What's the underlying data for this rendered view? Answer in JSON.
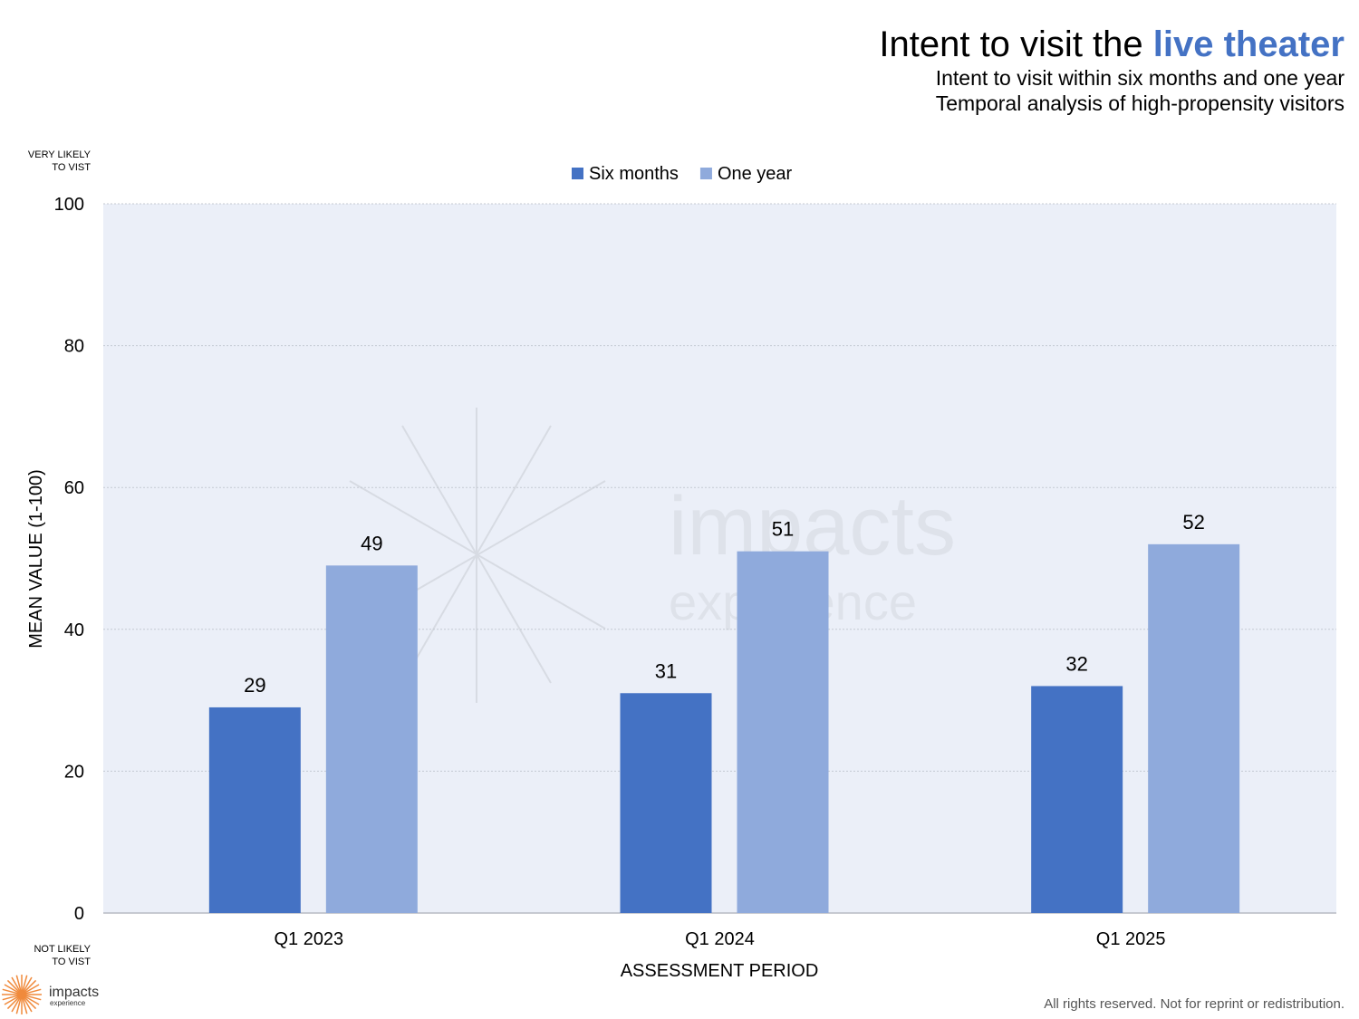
{
  "header": {
    "title_prefix": "Intent to visit the",
    "title_accent": "live theater",
    "subtitle_1": "Intent to visit within six months and one year",
    "subtitle_2": "Temporal analysis of high-propensity visitors"
  },
  "scale_labels": {
    "top": "VERY LIKELY\nTO VIST",
    "bottom": "NOT LIKELY\nTO VIST"
  },
  "watermark": {
    "line1": "impacts",
    "line2": "experience"
  },
  "logo": {
    "line1": "impacts",
    "line2": "experience",
    "color": "#f08a3c"
  },
  "footer": {
    "text": "All rights reserved. Not for reprint or redistribution."
  },
  "colors": {
    "accent": "#4472c4",
    "plot_bg": "#ebeff8"
  },
  "chart_data": {
    "type": "bar",
    "categories": [
      "Q1 2023",
      "Q1 2024",
      "Q1 2025"
    ],
    "series": [
      {
        "name": "Six months",
        "values": [
          29,
          31,
          32
        ],
        "color": "#4472c4"
      },
      {
        "name": "One year",
        "values": [
          49,
          51,
          52
        ],
        "color": "#8faadc"
      }
    ],
    "xlabel": "ASSESSMENT PERIOD",
    "ylabel": "MEAN VALUE (1-100)",
    "ylim": [
      0,
      100
    ],
    "yticks": [
      0,
      20,
      40,
      60,
      80,
      100
    ],
    "grid": true,
    "legend": "top-center"
  }
}
